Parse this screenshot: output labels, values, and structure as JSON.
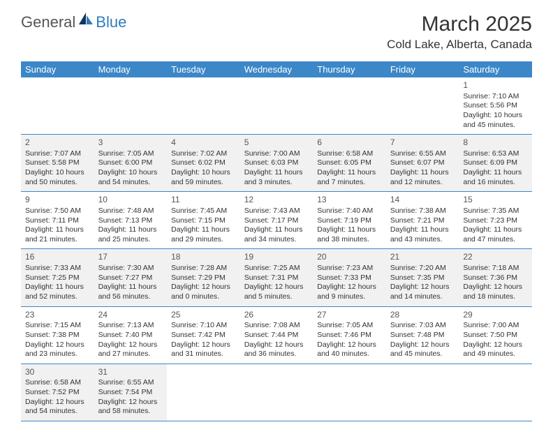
{
  "logo": {
    "general": "General",
    "blue": "Blue"
  },
  "title": "March 2025",
  "location": "Cold Lake, Alberta, Canada",
  "colors": {
    "header_bg": "#3b87c8",
    "header_fg": "#ffffff",
    "shaded_bg": "#f1f1f1",
    "border": "#3b87c8",
    "text": "#333333",
    "logo_gray": "#555555",
    "logo_blue": "#2f7bbf"
  },
  "day_headers": [
    "Sunday",
    "Monday",
    "Tuesday",
    "Wednesday",
    "Thursday",
    "Friday",
    "Saturday"
  ],
  "weeks": [
    [
      {
        "blank": true
      },
      {
        "blank": true
      },
      {
        "blank": true
      },
      {
        "blank": true
      },
      {
        "blank": true
      },
      {
        "blank": true
      },
      {
        "n": "1",
        "sr": "Sunrise: 7:10 AM",
        "ss": "Sunset: 5:56 PM",
        "d1": "Daylight: 10 hours",
        "d2": "and 45 minutes."
      }
    ],
    [
      {
        "n": "2",
        "sr": "Sunrise: 7:07 AM",
        "ss": "Sunset: 5:58 PM",
        "d1": "Daylight: 10 hours",
        "d2": "and 50 minutes.",
        "shaded": true
      },
      {
        "n": "3",
        "sr": "Sunrise: 7:05 AM",
        "ss": "Sunset: 6:00 PM",
        "d1": "Daylight: 10 hours",
        "d2": "and 54 minutes.",
        "shaded": true
      },
      {
        "n": "4",
        "sr": "Sunrise: 7:02 AM",
        "ss": "Sunset: 6:02 PM",
        "d1": "Daylight: 10 hours",
        "d2": "and 59 minutes.",
        "shaded": true
      },
      {
        "n": "5",
        "sr": "Sunrise: 7:00 AM",
        "ss": "Sunset: 6:03 PM",
        "d1": "Daylight: 11 hours",
        "d2": "and 3 minutes.",
        "shaded": true
      },
      {
        "n": "6",
        "sr": "Sunrise: 6:58 AM",
        "ss": "Sunset: 6:05 PM",
        "d1": "Daylight: 11 hours",
        "d2": "and 7 minutes.",
        "shaded": true
      },
      {
        "n": "7",
        "sr": "Sunrise: 6:55 AM",
        "ss": "Sunset: 6:07 PM",
        "d1": "Daylight: 11 hours",
        "d2": "and 12 minutes.",
        "shaded": true
      },
      {
        "n": "8",
        "sr": "Sunrise: 6:53 AM",
        "ss": "Sunset: 6:09 PM",
        "d1": "Daylight: 11 hours",
        "d2": "and 16 minutes.",
        "shaded": true
      }
    ],
    [
      {
        "n": "9",
        "sr": "Sunrise: 7:50 AM",
        "ss": "Sunset: 7:11 PM",
        "d1": "Daylight: 11 hours",
        "d2": "and 21 minutes."
      },
      {
        "n": "10",
        "sr": "Sunrise: 7:48 AM",
        "ss": "Sunset: 7:13 PM",
        "d1": "Daylight: 11 hours",
        "d2": "and 25 minutes."
      },
      {
        "n": "11",
        "sr": "Sunrise: 7:45 AM",
        "ss": "Sunset: 7:15 PM",
        "d1": "Daylight: 11 hours",
        "d2": "and 29 minutes."
      },
      {
        "n": "12",
        "sr": "Sunrise: 7:43 AM",
        "ss": "Sunset: 7:17 PM",
        "d1": "Daylight: 11 hours",
        "d2": "and 34 minutes."
      },
      {
        "n": "13",
        "sr": "Sunrise: 7:40 AM",
        "ss": "Sunset: 7:19 PM",
        "d1": "Daylight: 11 hours",
        "d2": "and 38 minutes."
      },
      {
        "n": "14",
        "sr": "Sunrise: 7:38 AM",
        "ss": "Sunset: 7:21 PM",
        "d1": "Daylight: 11 hours",
        "d2": "and 43 minutes."
      },
      {
        "n": "15",
        "sr": "Sunrise: 7:35 AM",
        "ss": "Sunset: 7:23 PM",
        "d1": "Daylight: 11 hours",
        "d2": "and 47 minutes."
      }
    ],
    [
      {
        "n": "16",
        "sr": "Sunrise: 7:33 AM",
        "ss": "Sunset: 7:25 PM",
        "d1": "Daylight: 11 hours",
        "d2": "and 52 minutes.",
        "shaded": true
      },
      {
        "n": "17",
        "sr": "Sunrise: 7:30 AM",
        "ss": "Sunset: 7:27 PM",
        "d1": "Daylight: 11 hours",
        "d2": "and 56 minutes.",
        "shaded": true
      },
      {
        "n": "18",
        "sr": "Sunrise: 7:28 AM",
        "ss": "Sunset: 7:29 PM",
        "d1": "Daylight: 12 hours",
        "d2": "and 0 minutes.",
        "shaded": true
      },
      {
        "n": "19",
        "sr": "Sunrise: 7:25 AM",
        "ss": "Sunset: 7:31 PM",
        "d1": "Daylight: 12 hours",
        "d2": "and 5 minutes.",
        "shaded": true
      },
      {
        "n": "20",
        "sr": "Sunrise: 7:23 AM",
        "ss": "Sunset: 7:33 PM",
        "d1": "Daylight: 12 hours",
        "d2": "and 9 minutes.",
        "shaded": true
      },
      {
        "n": "21",
        "sr": "Sunrise: 7:20 AM",
        "ss": "Sunset: 7:35 PM",
        "d1": "Daylight: 12 hours",
        "d2": "and 14 minutes.",
        "shaded": true
      },
      {
        "n": "22",
        "sr": "Sunrise: 7:18 AM",
        "ss": "Sunset: 7:36 PM",
        "d1": "Daylight: 12 hours",
        "d2": "and 18 minutes.",
        "shaded": true
      }
    ],
    [
      {
        "n": "23",
        "sr": "Sunrise: 7:15 AM",
        "ss": "Sunset: 7:38 PM",
        "d1": "Daylight: 12 hours",
        "d2": "and 23 minutes."
      },
      {
        "n": "24",
        "sr": "Sunrise: 7:13 AM",
        "ss": "Sunset: 7:40 PM",
        "d1": "Daylight: 12 hours",
        "d2": "and 27 minutes."
      },
      {
        "n": "25",
        "sr": "Sunrise: 7:10 AM",
        "ss": "Sunset: 7:42 PM",
        "d1": "Daylight: 12 hours",
        "d2": "and 31 minutes."
      },
      {
        "n": "26",
        "sr": "Sunrise: 7:08 AM",
        "ss": "Sunset: 7:44 PM",
        "d1": "Daylight: 12 hours",
        "d2": "and 36 minutes."
      },
      {
        "n": "27",
        "sr": "Sunrise: 7:05 AM",
        "ss": "Sunset: 7:46 PM",
        "d1": "Daylight: 12 hours",
        "d2": "and 40 minutes."
      },
      {
        "n": "28",
        "sr": "Sunrise: 7:03 AM",
        "ss": "Sunset: 7:48 PM",
        "d1": "Daylight: 12 hours",
        "d2": "and 45 minutes."
      },
      {
        "n": "29",
        "sr": "Sunrise: 7:00 AM",
        "ss": "Sunset: 7:50 PM",
        "d1": "Daylight: 12 hours",
        "d2": "and 49 minutes."
      }
    ],
    [
      {
        "n": "30",
        "sr": "Sunrise: 6:58 AM",
        "ss": "Sunset: 7:52 PM",
        "d1": "Daylight: 12 hours",
        "d2": "and 54 minutes.",
        "shaded": true
      },
      {
        "n": "31",
        "sr": "Sunrise: 6:55 AM",
        "ss": "Sunset: 7:54 PM",
        "d1": "Daylight: 12 hours",
        "d2": "and 58 minutes.",
        "shaded": true
      },
      {
        "blank": true
      },
      {
        "blank": true
      },
      {
        "blank": true
      },
      {
        "blank": true
      },
      {
        "blank": true
      }
    ]
  ]
}
